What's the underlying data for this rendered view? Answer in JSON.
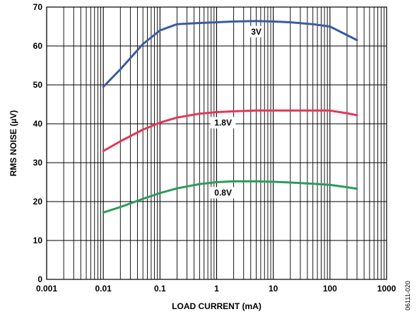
{
  "chart_data": {
    "type": "line",
    "title": "",
    "xlabel": "LOAD CURRENT (mA)",
    "ylabel": "RMS NOISE (µV)",
    "x_scale": "log",
    "xlim": [
      0.001,
      1000
    ],
    "ylim": [
      0,
      70
    ],
    "grid": true,
    "x_ticks": [
      {
        "value": 0.001,
        "label": "0.001"
      },
      {
        "value": 0.01,
        "label": "0.01"
      },
      {
        "value": 0.1,
        "label": "0.1"
      },
      {
        "value": 1,
        "label": "1"
      },
      {
        "value": 10,
        "label": "10"
      },
      {
        "value": 100,
        "label": "100"
      },
      {
        "value": 1000,
        "label": "1000"
      }
    ],
    "y_ticks": [
      {
        "value": 0,
        "label": "0"
      },
      {
        "value": 10,
        "label": "10"
      },
      {
        "value": 20,
        "label": "20"
      },
      {
        "value": 30,
        "label": "30"
      },
      {
        "value": 40,
        "label": "40"
      },
      {
        "value": 50,
        "label": "50"
      },
      {
        "value": 60,
        "label": "60"
      },
      {
        "value": 70,
        "label": "70"
      }
    ],
    "series": [
      {
        "name": "3V",
        "color": "#3a5ba0",
        "x": [
          0.01,
          0.02,
          0.05,
          0.1,
          0.2,
          0.5,
          1,
          2,
          5,
          10,
          20,
          50,
          100,
          200,
          300
        ],
        "y": [
          49.5,
          54,
          60.5,
          64,
          65.6,
          65.9,
          66.1,
          66.3,
          66.4,
          66.3,
          66.1,
          65.6,
          65,
          62.8,
          61.5
        ],
        "label_at": [
          5,
          66.4
        ]
      },
      {
        "name": "1.8V",
        "color": "#e0385a",
        "x": [
          0.01,
          0.02,
          0.05,
          0.1,
          0.2,
          0.5,
          1,
          2,
          5,
          10,
          20,
          50,
          100,
          200,
          300
        ],
        "y": [
          33,
          35.5,
          38.5,
          40.3,
          41.6,
          42.6,
          43,
          43.2,
          43.4,
          43.4,
          43.4,
          43.4,
          43.4,
          42.7,
          42.2
        ],
        "label_at": [
          1.3,
          43
        ]
      },
      {
        "name": "0.8V",
        "color": "#2e9a5c",
        "x": [
          0.01,
          0.02,
          0.05,
          0.1,
          0.2,
          0.5,
          1,
          2,
          5,
          10,
          20,
          50,
          100,
          200,
          300
        ],
        "y": [
          17.2,
          18.6,
          20.7,
          22.2,
          23.4,
          24.5,
          25,
          25.2,
          25.2,
          25.1,
          24.9,
          24.6,
          24.3,
          23.7,
          23.3
        ],
        "label_at": [
          1.3,
          25
        ]
      }
    ]
  },
  "figure_id": "06111-020"
}
